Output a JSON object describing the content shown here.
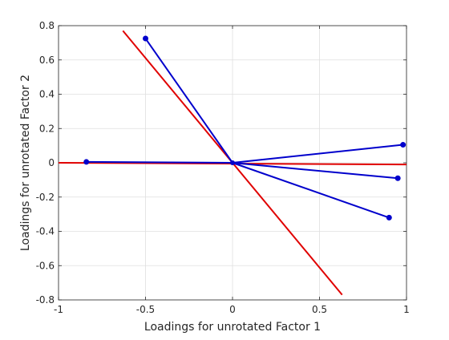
{
  "chart_data": {
    "type": "line",
    "title": "",
    "xlabel": "Loadings for unrotated Factor 1",
    "ylabel": "Loadings for unrotated Factor 2",
    "xlim": [
      -1,
      1
    ],
    "ylim": [
      -0.8,
      0.8
    ],
    "xticks": [
      -1,
      -0.5,
      0,
      0.5,
      1
    ],
    "xtick_labels": [
      "-1",
      "-0.5",
      "0",
      "0.5",
      "1"
    ],
    "yticks": [
      -0.8,
      -0.6,
      -0.4,
      -0.2,
      0,
      0.2,
      0.4,
      0.6,
      0.8
    ],
    "ytick_labels": [
      "-0.8",
      "-0.6",
      "-0.4",
      "-0.2",
      "0",
      "0.2",
      "0.4",
      "0.6",
      "0.8"
    ],
    "grid": true,
    "reference_lines": {
      "color": "#e00000",
      "lines": [
        [
          [
            -1.0,
            0.0
          ],
          [
            1.0,
            -0.01
          ]
        ],
        [
          [
            -0.63,
            0.77
          ],
          [
            0.63,
            -0.77
          ]
        ]
      ]
    },
    "loadings": {
      "color": "#0000cc",
      "points": [
        {
          "x": -0.84,
          "y": 0.005
        },
        {
          "x": -0.5,
          "y": 0.725
        },
        {
          "x": 0.98,
          "y": 0.105
        },
        {
          "x": 0.95,
          "y": -0.09
        },
        {
          "x": 0.9,
          "y": -0.32
        }
      ]
    }
  }
}
